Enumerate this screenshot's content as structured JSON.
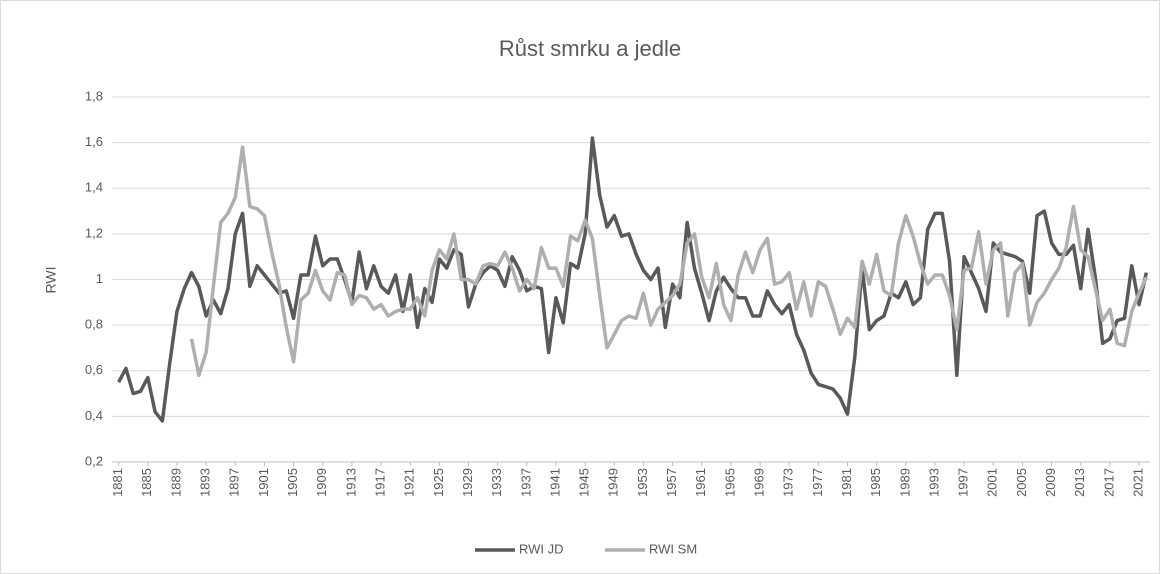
{
  "chart_data": {
    "type": "line",
    "title": "Růst smrku a jedle",
    "y_label": "RWI",
    "legend": "bottom",
    "grid": true,
    "x": [
      1881,
      1882,
      1883,
      1884,
      1885,
      1886,
      1887,
      1888,
      1889,
      1890,
      1891,
      1892,
      1893,
      1894,
      1895,
      1896,
      1897,
      1898,
      1899,
      1900,
      1901,
      1902,
      1903,
      1904,
      1905,
      1906,
      1907,
      1908,
      1909,
      1910,
      1911,
      1912,
      1913,
      1914,
      1915,
      1916,
      1917,
      1918,
      1919,
      1920,
      1921,
      1922,
      1923,
      1924,
      1925,
      1926,
      1927,
      1928,
      1929,
      1930,
      1931,
      1932,
      1933,
      1934,
      1935,
      1936,
      1937,
      1938,
      1939,
      1940,
      1941,
      1942,
      1943,
      1944,
      1945,
      1946,
      1947,
      1948,
      1949,
      1950,
      1951,
      1952,
      1953,
      1954,
      1955,
      1956,
      1957,
      1958,
      1959,
      1960,
      1961,
      1962,
      1963,
      1964,
      1965,
      1966,
      1967,
      1968,
      1969,
      1970,
      1971,
      1972,
      1973,
      1974,
      1975,
      1976,
      1977,
      1978,
      1979,
      1980,
      1981,
      1982,
      1983,
      1984,
      1985,
      1986,
      1987,
      1988,
      1989,
      1990,
      1991,
      1992,
      1993,
      1994,
      1995,
      1996,
      1997,
      1998,
      1999,
      2000,
      2001,
      2002,
      2003,
      2004,
      2005,
      2006,
      2007,
      2008,
      2009,
      2010,
      2011,
      2012,
      2013,
      2014,
      2015,
      2016,
      2017,
      2018,
      2019,
      2020,
      2021,
      2022
    ],
    "xlim": [
      1880.5,
      2022.5
    ],
    "xticks": [
      1881,
      1885,
      1889,
      1893,
      1897,
      1901,
      1905,
      1909,
      1913,
      1917,
      1921,
      1925,
      1929,
      1933,
      1937,
      1941,
      1945,
      1949,
      1953,
      1957,
      1961,
      1965,
      1969,
      1973,
      1977,
      1981,
      1985,
      1989,
      1993,
      1997,
      2001,
      2005,
      2009,
      2013,
      2017,
      2021
    ],
    "ylim": [
      0.2,
      1.8
    ],
    "yticks": [
      {
        "value": 0.2,
        "label": "0,2"
      },
      {
        "value": 0.4,
        "label": "0,4"
      },
      {
        "value": 0.6,
        "label": "0,6"
      },
      {
        "value": 0.8,
        "label": "0,8"
      },
      1,
      {
        "value": 1.2,
        "label": "1,2"
      },
      {
        "value": 1.4,
        "label": "1,4"
      },
      {
        "value": 1.6,
        "label": "1,6"
      },
      {
        "value": 1.8,
        "label": "1,8"
      }
    ],
    "series": [
      {
        "name": "RWI JD",
        "color": "#595959",
        "values": [
          0.55,
          0.61,
          0.5,
          0.51,
          0.57,
          0.42,
          0.38,
          0.63,
          0.86,
          0.96,
          1.03,
          0.97,
          0.84,
          0.91,
          0.85,
          0.96,
          1.2,
          1.29,
          0.97,
          1.06,
          1.02,
          0.98,
          0.94,
          0.95,
          0.83,
          1.02,
          1.02,
          1.19,
          1.06,
          1.09,
          1.09,
          1.0,
          0.9,
          1.12,
          0.96,
          1.06,
          0.97,
          0.94,
          1.02,
          0.86,
          1.02,
          0.79,
          0.96,
          0.9,
          1.09,
          1.05,
          1.13,
          1.11,
          0.88,
          0.98,
          1.03,
          1.06,
          1.04,
          0.97,
          1.1,
          1.04,
          0.95,
          0.97,
          0.96,
          0.68,
          0.92,
          0.81,
          1.07,
          1.05,
          1.2,
          1.62,
          1.37,
          1.23,
          1.28,
          1.19,
          1.2,
          1.11,
          1.04,
          1.0,
          1.05,
          0.79,
          0.98,
          0.92,
          1.25,
          1.05,
          0.94,
          0.82,
          0.95,
          1.01,
          0.96,
          0.92,
          0.92,
          0.84,
          0.84,
          0.95,
          0.89,
          0.85,
          0.89,
          0.76,
          0.69,
          0.59,
          0.54,
          0.53,
          0.52,
          0.48,
          0.41,
          0.66,
          1.05,
          0.78,
          0.82,
          0.84,
          0.94,
          0.92,
          0.99,
          0.89,
          0.92,
          1.22,
          1.29,
          1.29,
          1.08,
          0.58,
          1.1,
          1.03,
          0.96,
          0.86,
          1.16,
          1.12,
          1.11,
          1.1,
          1.08,
          0.94,
          1.28,
          1.3,
          1.16,
          1.11,
          1.11,
          1.15,
          0.96,
          1.22,
          1.01,
          0.72,
          0.74,
          0.82,
          0.83,
          1.06,
          0.89,
          1.03
        ]
      },
      {
        "name": "RWI SM",
        "color": "#afafaf",
        "values": [
          null,
          null,
          null,
          null,
          null,
          null,
          null,
          null,
          null,
          null,
          0.74,
          0.58,
          0.68,
          0.97,
          1.25,
          1.29,
          1.36,
          1.58,
          1.32,
          1.31,
          1.28,
          1.12,
          0.98,
          0.79,
          0.64,
          0.91,
          0.94,
          1.04,
          0.95,
          0.91,
          1.03,
          1.02,
          0.89,
          0.93,
          0.92,
          0.87,
          0.89,
          0.84,
          0.86,
          0.87,
          0.87,
          0.92,
          0.84,
          1.04,
          1.13,
          1.09,
          1.2,
          1.0,
          1.0,
          0.98,
          1.06,
          1.07,
          1.06,
          1.12,
          1.05,
          0.95,
          1.0,
          0.96,
          1.14,
          1.05,
          1.05,
          0.97,
          1.19,
          1.17,
          1.26,
          1.18,
          0.93,
          0.7,
          0.76,
          0.82,
          0.84,
          0.83,
          0.94,
          0.8,
          0.87,
          0.9,
          0.93,
          0.98,
          1.16,
          1.2,
          1.01,
          0.92,
          1.07,
          0.89,
          0.82,
          1.02,
          1.12,
          1.03,
          1.13,
          1.18,
          0.98,
          0.99,
          1.03,
          0.87,
          0.99,
          0.84,
          0.99,
          0.97,
          0.87,
          0.76,
          0.83,
          0.79,
          1.08,
          0.98,
          1.11,
          0.95,
          0.93,
          1.16,
          1.28,
          1.19,
          1.07,
          0.98,
          1.02,
          1.02,
          0.93,
          0.78,
          1.04,
          1.05,
          1.21,
          0.98,
          1.13,
          1.16,
          0.84,
          1.03,
          1.07,
          0.8,
          0.9,
          0.94,
          1.0,
          1.05,
          1.14,
          1.32,
          1.13,
          1.1,
          0.96,
          0.82,
          0.87,
          0.72,
          0.71,
          0.86,
          0.94,
          1.01
        ]
      }
    ]
  }
}
